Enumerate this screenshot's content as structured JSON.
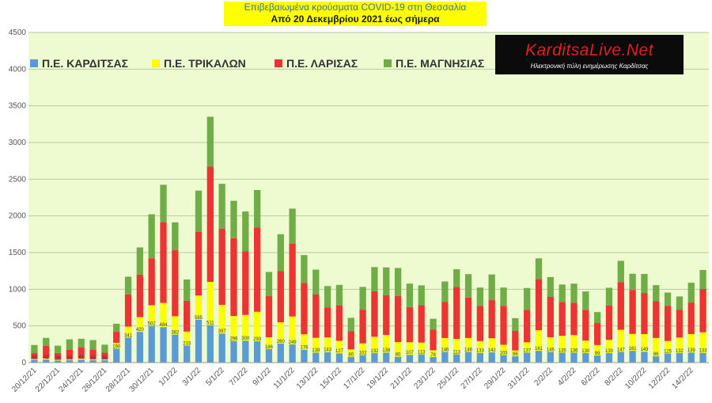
{
  "title": {
    "line1": "Επιβεβαιωμένα κρούσματα COVID-19 στη Θεσσαλία",
    "line2": "Από 20 Δεκεμβρίου 2021 έως σήμερα"
  },
  "logo": {
    "name": "KarditsaLive.Net",
    "tagline": "Ηλεκτρονική πύλη ενημέρωσης Καρδίτσας"
  },
  "colors": {
    "plot_bg": "#eefbd0",
    "grid": "#b7c9a5",
    "title_bg": "#ffff00",
    "karditsa": "#5b9bd5",
    "trikala": "#ffff00",
    "larisa": "#ee3333",
    "magnisia": "#70ad47"
  },
  "chart_data": {
    "type": "bar",
    "stacked": true,
    "ylim": [
      0,
      4500
    ],
    "yticks": [
      0,
      500,
      1000,
      1500,
      2000,
      2500,
      3000,
      3500,
      4000,
      4500
    ],
    "grid": true,
    "legend_placement": "top",
    "x_tick_labels": [
      "20/12/21",
      "22/12/21",
      "24/12/21",
      "26/12/21",
      "28/12/21",
      "30/12/21",
      "1/1/22",
      "3/1/22",
      "5/1/22",
      "7/1/22",
      "9/1/22",
      "11/1/22",
      "13/1/22",
      "15/1/22",
      "17/1/22",
      "19/1/22",
      "21/1/22",
      "23/1/22",
      "25/1/22",
      "27/1/22",
      "29/1/22",
      "31/1/22",
      "2/2/22",
      "4/2/22",
      "6/2/22",
      "8/2/22",
      "10/2/22",
      "12/2/22",
      "14/2/22"
    ],
    "series": [
      {
        "name": "Π.Ε. ΚΑΡΔΙΤΣΑΣ",
        "values": [
          40,
          42,
          29,
          35,
          41,
          35,
          35,
          190,
          341,
          420,
          502,
          484,
          382,
          233,
          585,
          511,
          397,
          296,
          300,
          293,
          186,
          260,
          249,
          176,
          138,
          143,
          127,
          80,
          102,
          132,
          138,
          80,
          107,
          113,
          78,
          146,
          113,
          146,
          133,
          142,
          103,
          86,
          137,
          161,
          146,
          135,
          136,
          130,
          99,
          130,
          147,
          161,
          149,
          86,
          125,
          132,
          139,
          133
        ]
      },
      {
        "name": "Π.Ε. ΤΡΙΚΑΛΩΝ",
        "values": [
          10,
          15,
          12,
          12,
          14,
          12,
          10,
          80,
          150,
          200,
          280,
          330,
          250,
          190,
          330,
          590,
          390,
          340,
          350,
          400,
          160,
          290,
          380,
          210,
          200,
          200,
          170,
          100,
          160,
          220,
          240,
          200,
          170,
          160,
          90,
          190,
          210,
          190,
          160,
          190,
          140,
          80,
          140,
          280,
          200,
          230,
          240,
          170,
          140,
          180,
          300,
          230,
          240,
          250,
          170,
          210,
          250,
          280
        ]
      },
      {
        "name": "Π.Ε. ΛΑΡΙΣΑΣ",
        "values": [
          80,
          170,
          90,
          130,
          150,
          130,
          90,
          150,
          440,
          580,
          640,
          1100,
          900,
          420,
          870,
          1570,
          1040,
          1060,
          870,
          1150,
          560,
          700,
          990,
          700,
          590,
          410,
          480,
          250,
          460,
          620,
          540,
          630,
          480,
          510,
          280,
          490,
          710,
          550,
          480,
          520,
          530,
          270,
          440,
          700,
          550,
          460,
          440,
          420,
          300,
          470,
          650,
          600,
          560,
          500,
          480,
          380,
          430,
          590
        ]
      },
      {
        "name": "Π.Ε. ΜΑΓΝΗΣΙΑΣ",
        "values": [
          110,
          110,
          100,
          140,
          120,
          130,
          110,
          110,
          240,
          370,
          600,
          510,
          380,
          290,
          560,
          680,
          610,
          510,
          540,
          510,
          330,
          500,
          480,
          380,
          340,
          290,
          283,
          180,
          310,
          330,
          380,
          380,
          320,
          270,
          150,
          280,
          240,
          320,
          250,
          350,
          250,
          170,
          300,
          280,
          270,
          240,
          260,
          250,
          150,
          240,
          290,
          220,
          260,
          220,
          180,
          180,
          270,
          260
        ]
      }
    ]
  }
}
